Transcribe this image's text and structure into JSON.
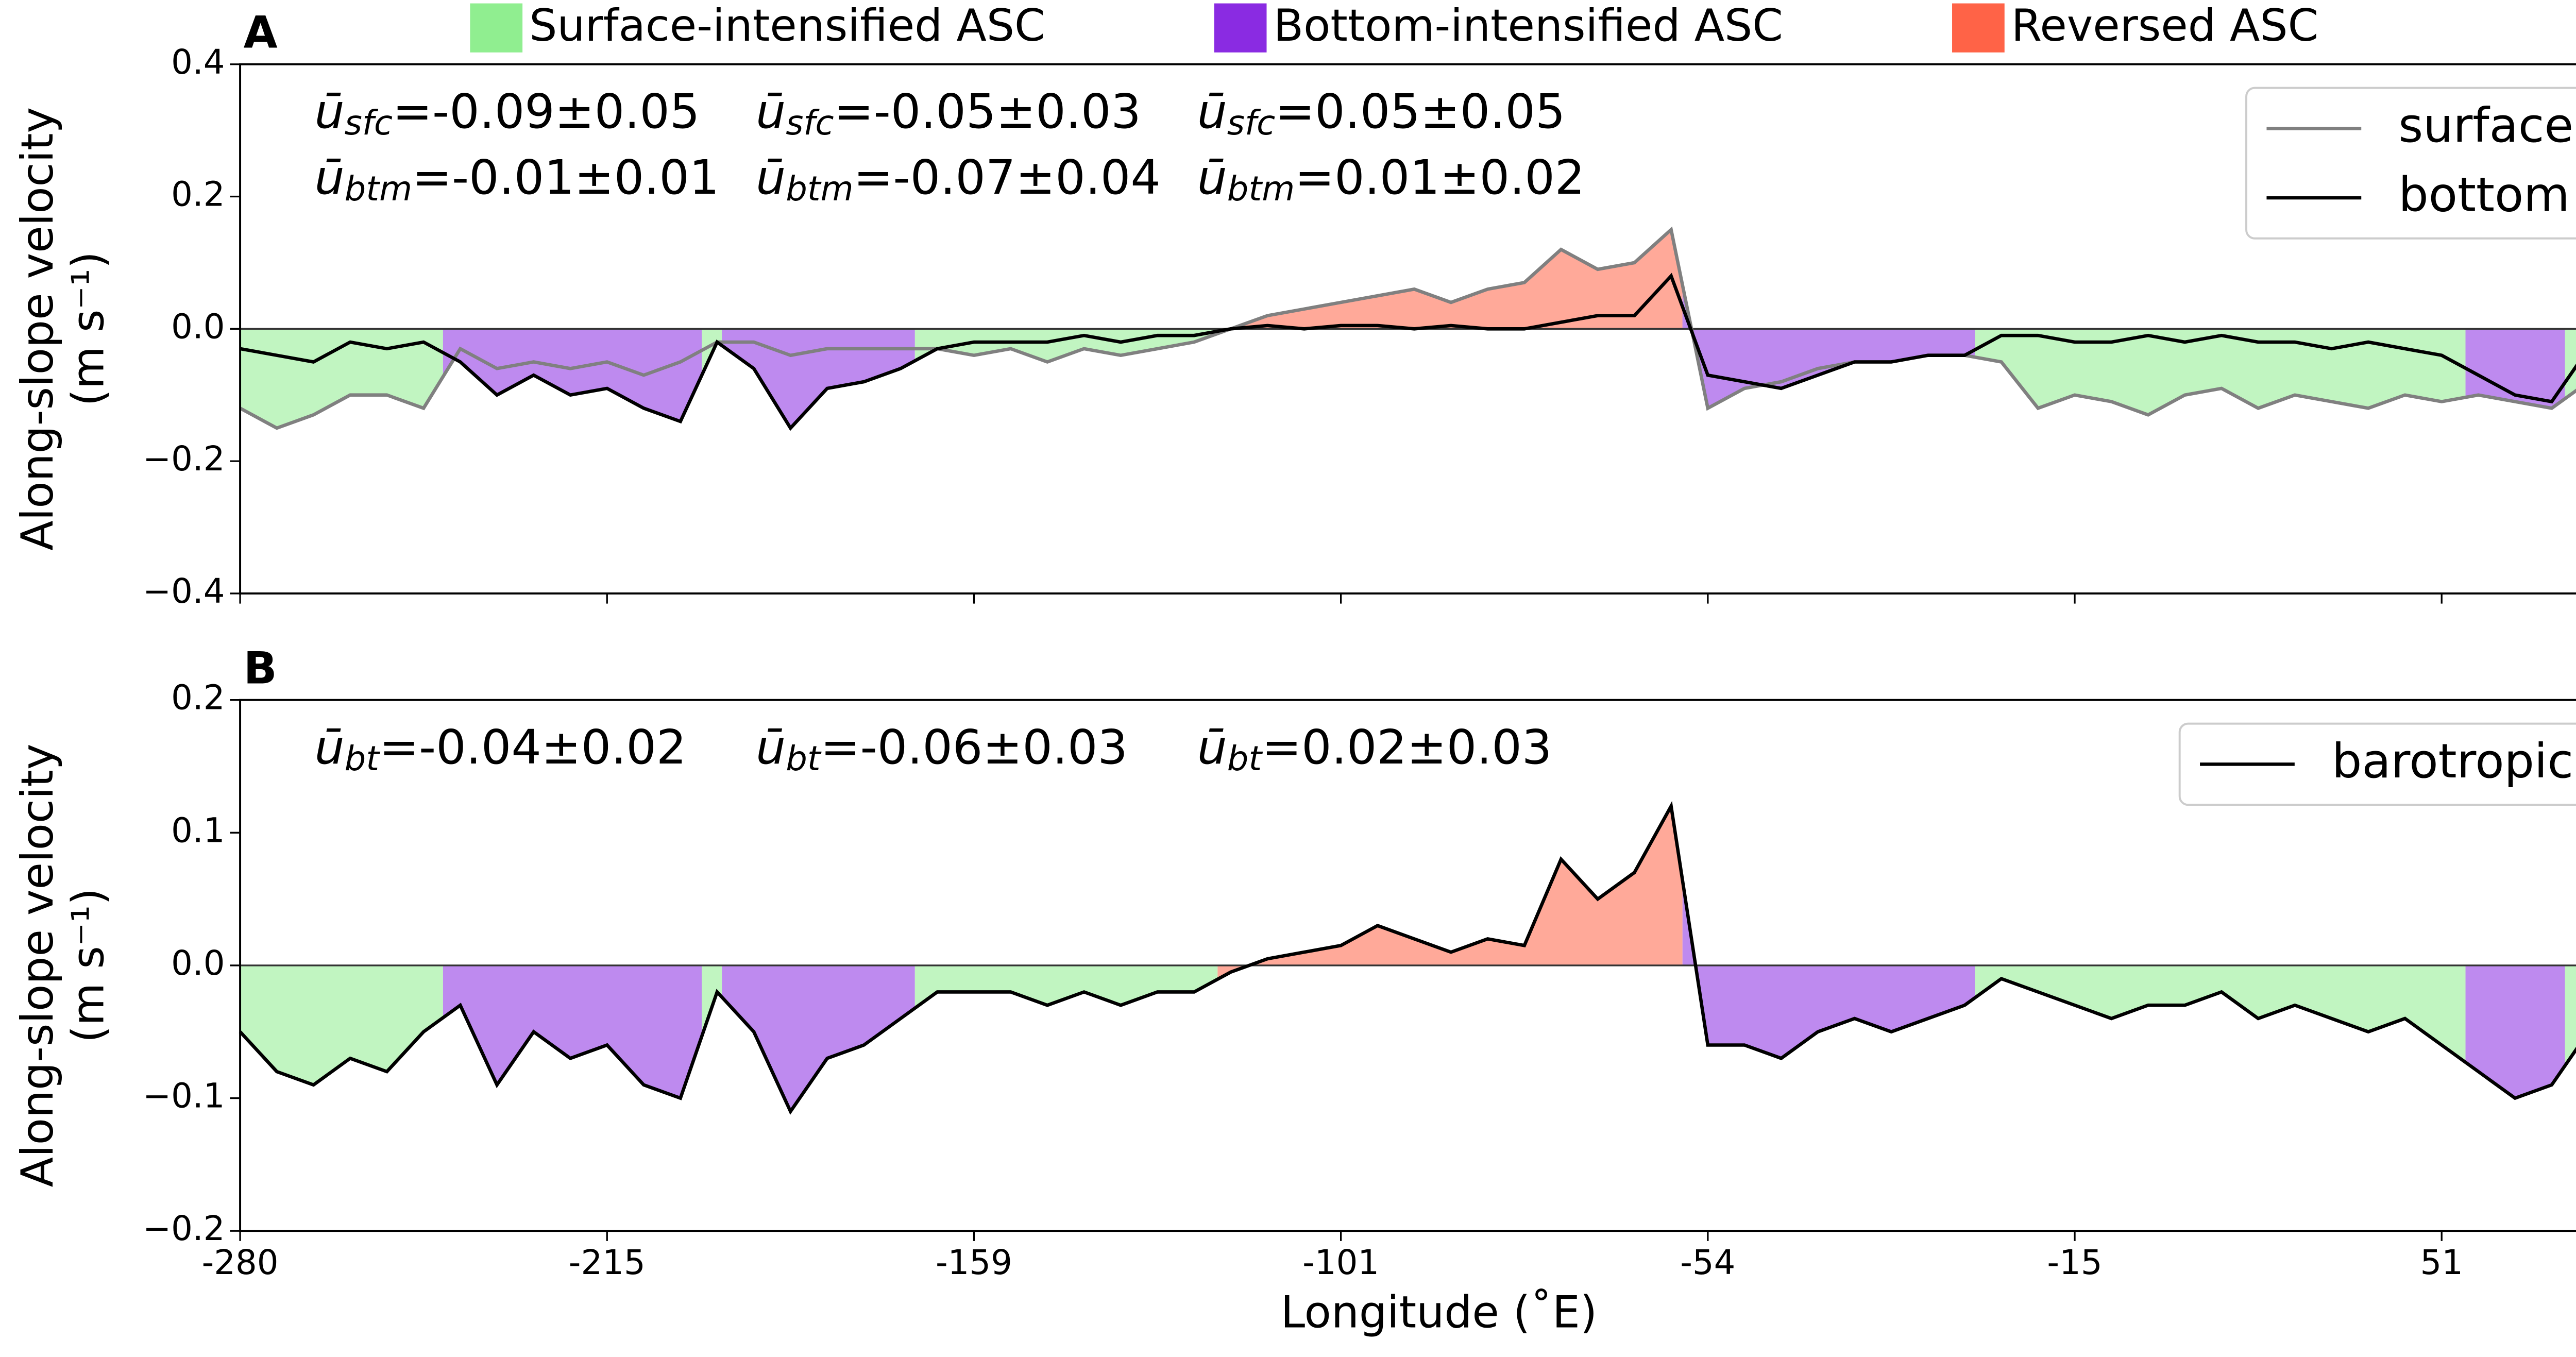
{
  "regimes": [
    {
      "name": "Surface-intensified ASC",
      "color": "#90ee90"
    },
    {
      "name": "Bottom-intensified ASC",
      "color": "#8a2be2"
    },
    {
      "name": "Reversed ASC",
      "color": "#ff6347"
    }
  ],
  "regions": [
    {
      "x": [
        0,
        0.553
      ],
      "regime": 0
    },
    {
      "x": [
        0.553,
        1.258
      ],
      "regime": 1
    },
    {
      "x": [
        1.258,
        1.313
      ],
      "regime": 0
    },
    {
      "x": [
        1.313,
        1.839
      ],
      "regime": 1
    },
    {
      "x": [
        1.839,
        2.664
      ],
      "regime": 0
    },
    {
      "x": [
        2.664,
        3.931
      ],
      "regime": 2
    },
    {
      "x": [
        3.931,
        4.728
      ],
      "regime": 1
    },
    {
      "x": [
        4.728,
        6.065
      ],
      "regime": 0
    },
    {
      "x": [
        6.065,
        6.336
      ],
      "regime": 1
    },
    {
      "x": [
        6.336,
        6.525
      ],
      "regime": 0
    }
  ],
  "chart_data": [
    {
      "type": "line",
      "panel_label": "A",
      "ylabel": [
        "Along-slope velocity",
        "(m s⁻¹)"
      ],
      "xlim": [
        0,
        6.525
      ],
      "xticks": [
        0,
        1,
        2,
        3,
        4,
        5,
        6
      ],
      "ylim": [
        -0.4,
        0.4
      ],
      "yticks": [
        {
          "value": -0.4,
          "label": "−0.4"
        },
        {
          "value": -0.2,
          "label": "−0.2"
        },
        {
          "value": 0,
          "label": "0.0"
        },
        {
          "value": 0.2,
          "label": "0.2"
        },
        {
          "value": 0.4,
          "label": "0.4"
        }
      ],
      "legend": "upper right",
      "x": [
        0,
        0.1,
        0.2,
        0.3,
        0.4,
        0.5,
        0.6,
        0.7,
        0.8,
        0.9,
        1,
        1.1,
        1.2,
        1.3,
        1.4,
        1.5,
        1.6,
        1.7,
        1.8,
        1.9,
        2,
        2.1,
        2.2,
        2.3,
        2.4,
        2.5,
        2.6,
        2.7,
        2.8,
        2.9,
        3,
        3.1,
        3.2,
        3.3,
        3.4,
        3.5,
        3.6,
        3.7,
        3.8,
        3.9,
        4,
        4.1,
        4.2,
        4.3,
        4.4,
        4.5,
        4.6,
        4.7,
        4.8,
        4.9,
        5,
        5.1,
        5.2,
        5.3,
        5.4,
        5.5,
        5.6,
        5.7,
        5.8,
        5.9,
        6,
        6.1,
        6.2,
        6.3,
        6.4,
        6.5
      ],
      "series": [
        {
          "name": "surface",
          "color": "#808080",
          "values": [
            -0.12,
            -0.15,
            -0.13,
            -0.1,
            -0.1,
            -0.12,
            -0.03,
            -0.06,
            -0.05,
            -0.06,
            -0.05,
            -0.07,
            -0.05,
            -0.02,
            -0.02,
            -0.04,
            -0.03,
            -0.03,
            -0.03,
            -0.03,
            -0.04,
            -0.03,
            -0.05,
            -0.03,
            -0.04,
            -0.03,
            -0.02,
            0,
            0.02,
            0.03,
            0.04,
            0.05,
            0.06,
            0.04,
            0.06,
            0.07,
            0.12,
            0.09,
            0.1,
            0.15,
            -0.12,
            -0.09,
            -0.08,
            -0.06,
            -0.05,
            -0.05,
            -0.04,
            -0.04,
            -0.05,
            -0.12,
            -0.1,
            -0.11,
            -0.13,
            -0.1,
            -0.09,
            -0.12,
            -0.1,
            -0.11,
            -0.12,
            -0.1,
            -0.11,
            -0.1,
            -0.11,
            -0.12,
            -0.08,
            -0.09
          ]
        },
        {
          "name": "bottom",
          "color": "#000000",
          "values": [
            -0.03,
            -0.04,
            -0.05,
            -0.02,
            -0.03,
            -0.02,
            -0.05,
            -0.1,
            -0.07,
            -0.1,
            -0.09,
            -0.12,
            -0.14,
            -0.02,
            -0.06,
            -0.15,
            -0.09,
            -0.08,
            -0.06,
            -0.03,
            -0.02,
            -0.02,
            -0.02,
            -0.01,
            -0.02,
            -0.01,
            -0.01,
            0,
            0.005,
            0,
            0.005,
            0.005,
            0,
            0.005,
            0,
            0,
            0.01,
            0.02,
            0.02,
            0.08,
            -0.07,
            -0.08,
            -0.09,
            -0.07,
            -0.05,
            -0.05,
            -0.04,
            -0.04,
            -0.01,
            -0.01,
            -0.02,
            -0.02,
            -0.01,
            -0.02,
            -0.01,
            -0.02,
            -0.02,
            -0.03,
            -0.02,
            -0.03,
            -0.04,
            -0.07,
            -0.1,
            -0.11,
            -0.03,
            -0.03
          ]
        }
      ],
      "annotations": [
        [
          {
            "symbol": "ū",
            "subscript": "sfc",
            "text": "=-0.09±0.05",
            "color": "#3ccf3c"
          },
          {
            "symbol": "ū",
            "subscript": "btm",
            "text": "=-0.01±0.01",
            "color": "#3ccf3c"
          }
        ],
        [
          {
            "symbol": "ū",
            "subscript": "sfc",
            "text": "=-0.05±0.03",
            "color": "#8a2be2"
          },
          {
            "symbol": "ū",
            "subscript": "btm",
            "text": "=-0.07±0.04",
            "color": "#8a2be2"
          }
        ],
        [
          {
            "symbol": "ū",
            "subscript": "sfc",
            "text": "=0.05±0.05",
            "color": "#ff6347"
          },
          {
            "symbol": "ū",
            "subscript": "btm",
            "text": "=0.01±0.02",
            "color": "#ff6347"
          }
        ]
      ]
    },
    {
      "type": "line",
      "panel_label": "B",
      "ylabel": [
        "Along-slope velocity",
        "(m s⁻¹)"
      ],
      "xlabel": "Longitude (˚E)",
      "xlim": [
        0,
        6.525
      ],
      "xticks": [
        {
          "value": 0,
          "label": "-280"
        },
        {
          "value": 1,
          "label": "-215"
        },
        {
          "value": 2,
          "label": "-159"
        },
        {
          "value": 3,
          "label": "-101"
        },
        {
          "value": 4,
          "label": "-54"
        },
        {
          "value": 5,
          "label": "-15"
        },
        {
          "value": 6,
          "label": "51"
        }
      ],
      "ylim": [
        -0.2,
        0.2
      ],
      "yticks": [
        {
          "value": -0.2,
          "label": "−0.2"
        },
        {
          "value": -0.1,
          "label": "−0.1"
        },
        {
          "value": 0,
          "label": "0.0"
        },
        {
          "value": 0.1,
          "label": "0.1"
        },
        {
          "value": 0.2,
          "label": "0.2"
        }
      ],
      "legend": "upper right",
      "x": [
        0,
        0.1,
        0.2,
        0.3,
        0.4,
        0.5,
        0.6,
        0.7,
        0.8,
        0.9,
        1,
        1.1,
        1.2,
        1.3,
        1.4,
        1.5,
        1.6,
        1.7,
        1.8,
        1.9,
        2,
        2.1,
        2.2,
        2.3,
        2.4,
        2.5,
        2.6,
        2.7,
        2.8,
        2.9,
        3,
        3.1,
        3.2,
        3.3,
        3.4,
        3.5,
        3.6,
        3.7,
        3.8,
        3.9,
        4,
        4.1,
        4.2,
        4.3,
        4.4,
        4.5,
        4.6,
        4.7,
        4.8,
        4.9,
        5,
        5.1,
        5.2,
        5.3,
        5.4,
        5.5,
        5.6,
        5.7,
        5.8,
        5.9,
        6,
        6.1,
        6.2,
        6.3,
        6.4,
        6.5
      ],
      "series": [
        {
          "name": "barotropic",
          "color": "#000000",
          "values": [
            -0.05,
            -0.08,
            -0.09,
            -0.07,
            -0.08,
            -0.05,
            -0.03,
            -0.09,
            -0.05,
            -0.07,
            -0.06,
            -0.09,
            -0.1,
            -0.02,
            -0.05,
            -0.11,
            -0.07,
            -0.06,
            -0.04,
            -0.02,
            -0.02,
            -0.02,
            -0.03,
            -0.02,
            -0.03,
            -0.02,
            -0.02,
            -0.005,
            0.005,
            0.01,
            0.015,
            0.03,
            0.02,
            0.01,
            0.02,
            0.015,
            0.08,
            0.05,
            0.07,
            0.12,
            -0.06,
            -0.06,
            -0.07,
            -0.05,
            -0.04,
            -0.05,
            -0.04,
            -0.03,
            -0.01,
            -0.02,
            -0.03,
            -0.04,
            -0.03,
            -0.03,
            -0.02,
            -0.04,
            -0.03,
            -0.04,
            -0.05,
            -0.04,
            -0.06,
            -0.08,
            -0.1,
            -0.09,
            -0.05,
            -0.04
          ]
        }
      ],
      "annotations": [
        [
          {
            "symbol": "ū",
            "subscript": "bt",
            "text": "=-0.04±0.02",
            "color": "#3ccf3c"
          }
        ],
        [
          {
            "symbol": "ū",
            "subscript": "bt",
            "text": "=-0.06±0.03",
            "color": "#8a2be2"
          }
        ],
        [
          {
            "symbol": "ū",
            "subscript": "bt",
            "text": "=0.02±0.03",
            "color": "#ff6347"
          }
        ]
      ]
    }
  ]
}
